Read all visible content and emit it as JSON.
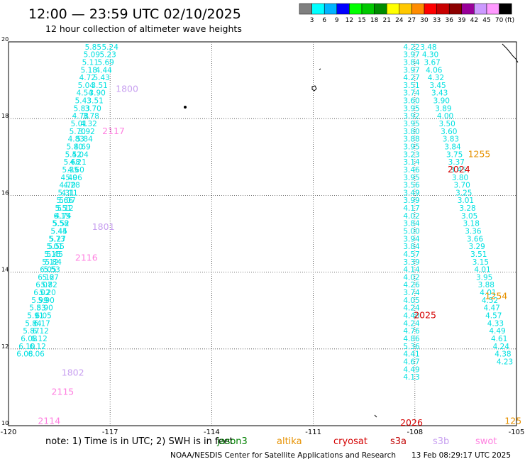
{
  "header": {
    "title": "12:00 — 23:59 UTC 02/10/2025",
    "subtitle": "12 hour collection of altimeter wave heights"
  },
  "colorbar": {
    "colors": [
      "#7f7f7f",
      "#00ffff",
      "#00b4ff",
      "#0000ff",
      "#00ff00",
      "#00c800",
      "#008c00",
      "#ffff00",
      "#ffc800",
      "#ff8c00",
      "#ff0000",
      "#c80000",
      "#8c0000",
      "#990099",
      "#cc99ff",
      "#ff99ff",
      "#000000"
    ],
    "labels": [
      "3",
      "6",
      "9",
      "12",
      "15",
      "18",
      "21",
      "24",
      "27",
      "30",
      "33",
      "36",
      "39",
      "42",
      "45",
      "70"
    ],
    "unit": "(ft)"
  },
  "chart_data": {
    "type": "map-scatter",
    "xlim": [
      -120,
      -105
    ],
    "ylim": [
      10,
      20
    ],
    "x_ticks": [
      "-120",
      "-117",
      "-114",
      "-111",
      "-108",
      "-105"
    ],
    "y_ticks": [
      "20",
      "18",
      "16",
      "14",
      "12",
      "10"
    ],
    "swh_color": "#00e0e0",
    "tracks": [
      {
        "x0": -117.5,
        "y0": 19.8,
        "dx": -0.042,
        "dy": -0.2,
        "values": [
          "5.85",
          "5.09",
          "5.11",
          "5.18",
          "4.72",
          "5.04",
          "4.54",
          "5.43",
          "5.83",
          "4.78",
          "5.01",
          "5.70",
          "4.83",
          "5.80",
          "5.52",
          "5.68",
          "5.35",
          "4.49",
          "4.70",
          "5.31",
          "5.66",
          "5.51",
          "6.15",
          "5.58",
          "5.45",
          "5.27",
          "5.55",
          "5.45",
          "5.84",
          "5.53",
          "5.67",
          "5.82",
          "5.20",
          "5.90",
          "5.90",
          "6.05",
          "6.17",
          "6.12",
          "6.12",
          "6.12",
          "6.06"
        ]
      },
      {
        "x0": -117.0,
        "y0": 19.8,
        "dx": -0.063,
        "dy": -0.2,
        "values": [
          "5.24",
          "5.23",
          "5.69",
          "4.44",
          "5.43",
          "3.51",
          "3.90",
          "3.51",
          "3.70",
          "3.78",
          "4.32",
          "3.92",
          "5.84",
          "4.69",
          "4.04",
          "4.21",
          "4.60",
          "5.06",
          "4.28",
          "4.11",
          "5.07",
          "5.12",
          "4.74",
          "5.52",
          "5.44",
          "5.73",
          "5.01",
          "5.15",
          "5.12",
          "6.05",
          "6.12",
          "6.07",
          "6.02",
          "5.99",
          "5.83",
          "5.91",
          "5.84",
          "5.87",
          "6.08",
          "6.10",
          "6.08"
        ]
      },
      {
        "x0": -108.1,
        "y0": 19.8,
        "dx": 0.0,
        "dy": -0.2,
        "values": [
          "4.22",
          "3.97",
          "3.84",
          "3.97",
          "4.27",
          "3.51",
          "3.74",
          "3.60",
          "3.95",
          "3.92",
          "3.95",
          "3.80",
          "3.88",
          "3.95",
          "3.23",
          "3.14",
          "3.46",
          "3.95",
          "3.56",
          "3.49",
          "3.99",
          "4.17",
          "4.02",
          "3.84",
          "5.00",
          "3.94",
          "3.84",
          "4.57",
          "3.39",
          "4.14",
          "4.02",
          "4.26",
          "3.74",
          "4.05",
          "4.24",
          "4.40",
          "4.24",
          "4.76",
          "4.86",
          "5.36",
          "4.41",
          "4.67",
          "4.49",
          "4.13"
        ]
      },
      {
        "x0": -107.6,
        "y0": 19.8,
        "dx": 0.055,
        "dy": -0.2,
        "values": [
          "3.48",
          "4.30",
          "3.67",
          "4.06",
          "4.32",
          "3.45",
          "3.43",
          "3.90",
          "3.89",
          "4.00",
          "3.50",
          "3.60",
          "3.83",
          "3.84",
          "3.75",
          "3.37",
          "3.45",
          "3.80",
          "3.70",
          "3.25",
          "3.01",
          "3.28",
          "3.05",
          "3.18",
          "3.36",
          "3.66",
          "3.29",
          "3.51",
          "3.15",
          "4.01",
          "3.95",
          "3.88",
          "4.01",
          "4.52",
          "4.47",
          "4.57",
          "4.33",
          "4.49",
          "4.61",
          "4.24",
          "4.38",
          "4.23"
        ]
      }
    ],
    "time_labels": [
      {
        "text": "1800",
        "x": -116.5,
        "y": 18.7,
        "color": "#c8a0f0"
      },
      {
        "text": "2117",
        "x": -116.9,
        "y": 17.6,
        "color": "#ff80e0"
      },
      {
        "text": "1801",
        "x": -117.2,
        "y": 15.1,
        "color": "#c8a0f0"
      },
      {
        "text": "2116",
        "x": -117.7,
        "y": 14.3,
        "color": "#ff80e0"
      },
      {
        "text": "1802",
        "x": -118.1,
        "y": 11.3,
        "color": "#c8a0f0"
      },
      {
        "text": "2115",
        "x": -118.4,
        "y": 10.8,
        "color": "#ff80e0"
      },
      {
        "text": "2114",
        "x": -118.8,
        "y": 10.05,
        "color": "#ff80e0"
      },
      {
        "text": "1255",
        "x": -106.1,
        "y": 17.0,
        "color": "#e69100"
      },
      {
        "text": "2024",
        "x": -106.7,
        "y": 16.6,
        "color": "#d40000"
      },
      {
        "text": "1254",
        "x": -105.6,
        "y": 13.3,
        "color": "#e69100"
      },
      {
        "text": "2025",
        "x": -107.7,
        "y": 12.8,
        "color": "#d40000"
      },
      {
        "text": "2026",
        "x": -108.1,
        "y": 10.0,
        "color": "#d40000"
      },
      {
        "text": "125",
        "x": -105.1,
        "y": 10.05,
        "color": "#e69100"
      }
    ]
  },
  "footer": {
    "note": "note:  1) Time is in UTC;  2) SWH is in feet",
    "satellites": [
      {
        "name": "jason3",
        "color": "#008000"
      },
      {
        "name": "altika",
        "color": "#e69100"
      },
      {
        "name": "cryosat",
        "color": "#d40000"
      },
      {
        "name": "s3a",
        "color": "#c00000"
      },
      {
        "name": "s3b",
        "color": "#c8a0f0"
      },
      {
        "name": "swot",
        "color": "#ff80e0"
      }
    ],
    "credit": "NOAA/NESDIS Center for Satellite Applications and Research",
    "timestamp": "13 Feb 08:29:17 UTC 2025"
  }
}
